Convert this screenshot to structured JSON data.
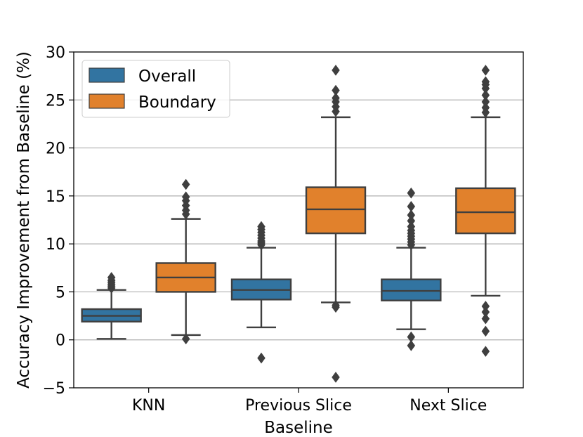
{
  "chart_data": {
    "type": "box",
    "xlabel": "Baseline",
    "ylabel": "Accuracy Improvement from Baseline (%)",
    "ylim": [
      -5,
      30
    ],
    "yticks": [
      -5,
      0,
      5,
      10,
      15,
      20,
      25,
      30
    ],
    "ytick_labels": [
      "−5",
      "0",
      "5",
      "10",
      "15",
      "20",
      "25",
      "30"
    ],
    "grid": "horizontal",
    "categories": [
      "KNN",
      "Previous Slice",
      "Next Slice"
    ],
    "legend_position": "upper-left",
    "series": [
      {
        "name": "Overall",
        "color": "#3274a1",
        "boxes": [
          {
            "whisker_low": 0.1,
            "q1": 1.9,
            "median": 2.5,
            "q3": 3.2,
            "whisker_high": 5.2,
            "outliers": [
              5.4,
              5.6,
              5.8,
              6.0,
              6.2,
              6.5
            ]
          },
          {
            "whisker_low": 1.3,
            "q1": 4.2,
            "median": 5.2,
            "q3": 6.3,
            "whisker_high": 9.6,
            "outliers": [
              -1.9,
              9.9,
              10.1,
              10.3,
              10.6,
              10.9,
              11.2,
              11.5,
              11.8
            ]
          },
          {
            "whisker_low": 1.1,
            "q1": 4.1,
            "median": 5.1,
            "q3": 6.3,
            "whisker_high": 9.6,
            "outliers": [
              -0.6,
              0.3,
              9.9,
              10.2,
              10.5,
              10.8,
              11.1,
              11.4,
              11.8,
              12.4,
              13.0,
              13.9,
              15.3
            ]
          }
        ]
      },
      {
        "name": "Boundary",
        "color": "#e1812c",
        "boxes": [
          {
            "whisker_low": 0.5,
            "q1": 5.0,
            "median": 6.5,
            "q3": 8.0,
            "whisker_high": 12.6,
            "outliers": [
              0.1,
              13.1,
              13.5,
              14.0,
              14.5,
              14.9,
              16.2
            ]
          },
          {
            "whisker_low": 3.9,
            "q1": 11.1,
            "median": 13.6,
            "q3": 15.9,
            "whisker_high": 23.2,
            "outliers": [
              -3.9,
              3.4,
              3.6,
              23.8,
              24.3,
              24.8,
              25.2,
              26.0,
              28.1
            ]
          },
          {
            "whisker_low": 4.6,
            "q1": 11.1,
            "median": 13.3,
            "q3": 15.8,
            "whisker_high": 23.2,
            "outliers": [
              -1.2,
              0.9,
              2.2,
              2.9,
              3.5,
              23.7,
              24.2,
              24.8,
              25.5,
              26.2,
              26.6,
              26.9,
              28.1
            ]
          }
        ]
      }
    ]
  },
  "colors": {
    "edge": "#3f3f3f",
    "grid": "#b0b0b0"
  }
}
